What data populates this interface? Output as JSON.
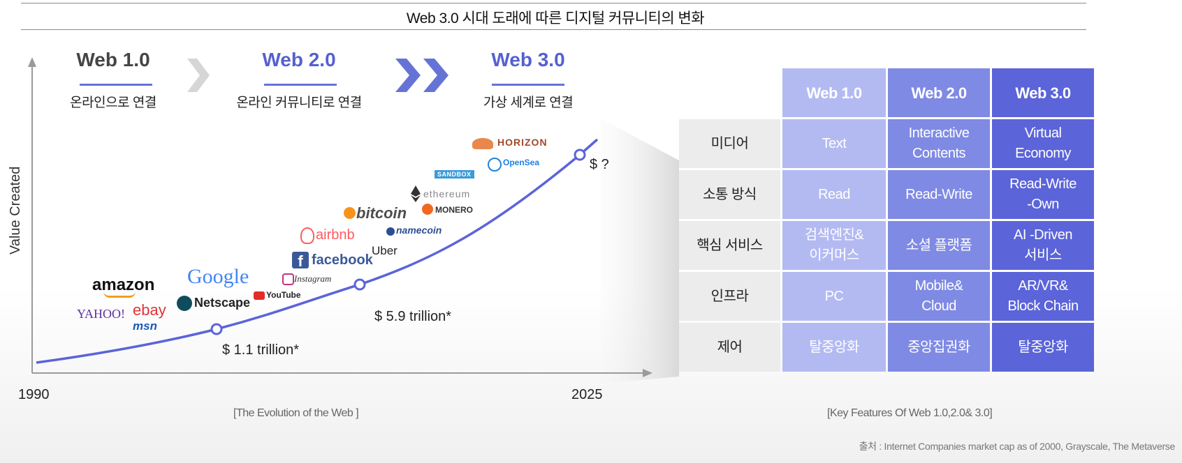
{
  "title": "Web 3.0 시대 도래에 따른 디지털 커뮤니티의 변화",
  "eras": [
    {
      "name": "Web 1.0",
      "desc": "온라인으로 연결"
    },
    {
      "name": "Web 2.0",
      "desc": "온라인 커뮤니티로 연결"
    },
    {
      "name": "Web 3.0",
      "desc": "가상 세계로 연결"
    }
  ],
  "chart_data": {
    "type": "line",
    "ylabel": "Value Created",
    "x": [
      1990,
      2025
    ],
    "xticks": [
      "1990",
      "2025"
    ],
    "points": [
      {
        "year": 2000,
        "label": "$ 1.1 trillion*"
      },
      {
        "year": 2010,
        "label": "$ 5.9 trillion*"
      },
      {
        "year": 2022,
        "label": "$ ?"
      }
    ],
    "company_logos": [
      "amazon",
      "YAHOO!",
      "ebay",
      "msn",
      "Google",
      "Netscape",
      "YouTube",
      "Instagram",
      "facebook",
      "airbnb",
      "Uber",
      "bitcoin",
      "namecoin",
      "ethereum",
      "MONERO",
      "SANDBOX",
      "OpenSea",
      "HORIZON"
    ],
    "caption": "[The Evolution of the Web ]"
  },
  "table": {
    "columns": [
      "Web 1.0",
      "Web 2.0",
      "Web 3.0"
    ],
    "rows": [
      {
        "label": "미디어",
        "values": [
          "Text",
          "Interactive\nContents",
          "Virtual\nEconomy"
        ]
      },
      {
        "label": "소통 방식",
        "values": [
          "Read",
          "Read-Write",
          "Read-Write\n-Own"
        ]
      },
      {
        "label": "핵심 서비스",
        "values": [
          "검색엔진&\n이커머스",
          "소셜 플랫폼",
          "AI -Driven\n서비스"
        ]
      },
      {
        "label": "인프라",
        "values": [
          "PC",
          "Mobile&\nCloud",
          "AR/VR&\nBlock Chain"
        ]
      },
      {
        "label": "제어",
        "values": [
          "탈중앙화",
          "중앙집권화",
          "탈중앙화"
        ]
      }
    ],
    "caption": "[Key Features Of Web 1.0,2.0& 3.0]"
  },
  "source": "출처 : Internet Companies market cap as of 2000, Grayscale, The Metaverse",
  "colors": {
    "accent": "#6673d6",
    "col1": "#b3baf2",
    "col2": "#7f8ae4",
    "col3": "#5b64d8"
  }
}
